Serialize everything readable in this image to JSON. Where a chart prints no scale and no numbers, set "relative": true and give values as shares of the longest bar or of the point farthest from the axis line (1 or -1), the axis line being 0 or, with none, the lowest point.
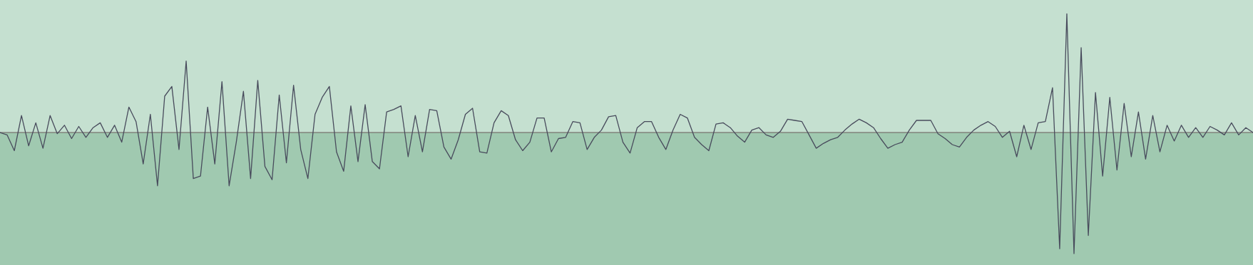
{
  "chart_data": {
    "type": "line",
    "relative": true,
    "categories": [
      null,
      null,
      null,
      null,
      null,
      null,
      null,
      null,
      null,
      null,
      null,
      null,
      null,
      null,
      null,
      null,
      null,
      null,
      null,
      null,
      null,
      null,
      null,
      null,
      null,
      null,
      null,
      null,
      null,
      null,
      null,
      null,
      null,
      null,
      null,
      null,
      null,
      null,
      null,
      null,
      null,
      null,
      null,
      null,
      null,
      null,
      null,
      null,
      null,
      null,
      null,
      null,
      null,
      null,
      null,
      null,
      null,
      null,
      null,
      null,
      null,
      null,
      null,
      null,
      null,
      null,
      null,
      null,
      null,
      null,
      null,
      null,
      null,
      null,
      null,
      null,
      null,
      null,
      null,
      null,
      null,
      null,
      null,
      null,
      null,
      null,
      null,
      null,
      null,
      null,
      null,
      null,
      null,
      null,
      null,
      null,
      null,
      null,
      null,
      null,
      null,
      null,
      null,
      null,
      null,
      null,
      null,
      null,
      null,
      null,
      null,
      null,
      null,
      null,
      null,
      null,
      null,
      null,
      null,
      null,
      null,
      null,
      null,
      null,
      null,
      null,
      null,
      null,
      null,
      null,
      null,
      null,
      null,
      null,
      null,
      null,
      null,
      null,
      null,
      null,
      null,
      null,
      null,
      null,
      null,
      null,
      null,
      null,
      null,
      null,
      null,
      null,
      null,
      null,
      null,
      null,
      null,
      null,
      null,
      null,
      null,
      null,
      null,
      null,
      null,
      null,
      null,
      null,
      null,
      null,
      null,
      null,
      null,
      null,
      null,
      null
    ],
    "series": [
      {
        "color": "#484b5c",
        "values": [
          0,
          -0.02,
          -0.15,
          0.14,
          -0.11,
          0.08,
          -0.13,
          0.14,
          -0.01,
          0.06,
          -0.05,
          0.05,
          -0.04,
          0.04,
          0.08,
          -0.04,
          0.06,
          -0.08,
          0.21,
          0.09,
          -0.26,
          0.15,
          -0.44,
          0.3,
          0.38,
          -0.14,
          0.59,
          -0.38,
          -0.36,
          0.21,
          -0.26,
          0.42,
          -0.44,
          -0.08,
          0.34,
          -0.38,
          0.43,
          -0.28,
          -0.39,
          0.31,
          -0.25,
          0.39,
          -0.14,
          -0.38,
          0.15,
          0.29,
          0.38,
          -0.16,
          -0.32,
          0.22,
          -0.24,
          0.23,
          -0.24,
          -0.3,
          0.17,
          0.19,
          0.22,
          -0.2,
          0.14,
          -0.16,
          0.19,
          0.18,
          -0.12,
          -0.22,
          -0.06,
          0.15,
          0.2,
          -0.16,
          -0.17,
          0.08,
          0.18,
          0.14,
          -0.06,
          -0.15,
          -0.08,
          0.12,
          0.12,
          -0.16,
          -0.05,
          -0.04,
          0.09,
          0.08,
          -0.14,
          -0.04,
          0.02,
          0.13,
          0.14,
          -0.08,
          -0.17,
          0.04,
          0.09,
          0.09,
          -0.04,
          -0.14,
          0.02,
          0.15,
          0.12,
          -0.04,
          -0.1,
          -0.15,
          0.07,
          0.08,
          0.04,
          -0.03,
          -0.08,
          0.02,
          0.04,
          -0.02,
          -0.04,
          0.01,
          0.11,
          0.1,
          0.09,
          -0.02,
          -0.13,
          -0.09,
          -0.06,
          -0.04,
          0.02,
          0.07,
          0.11,
          0.08,
          0.04,
          -0.05,
          -0.13,
          -0.1,
          -0.08,
          0.02,
          0.1,
          0.1,
          0.1,
          -0.01,
          -0.05,
          -0.1,
          -0.12,
          -0.04,
          0.02,
          0.06,
          0.09,
          0.05,
          -0.04,
          0.01,
          -0.2,
          0.06,
          -0.14,
          0.08,
          0.09,
          0.37,
          -0.96,
          0.98,
          -1,
          0.7,
          -0.85,
          0.33,
          -0.36,
          0.29,
          -0.31,
          0.24,
          -0.2,
          0.17,
          -0.22,
          0.14,
          -0.16,
          0.06,
          -0.07,
          0.06,
          -0.04,
          0.04,
          -0.04,
          0.05,
          0.02,
          -0.02,
          0.08,
          -0.02,
          0.04,
          0
        ]
      }
    ]
  }
}
